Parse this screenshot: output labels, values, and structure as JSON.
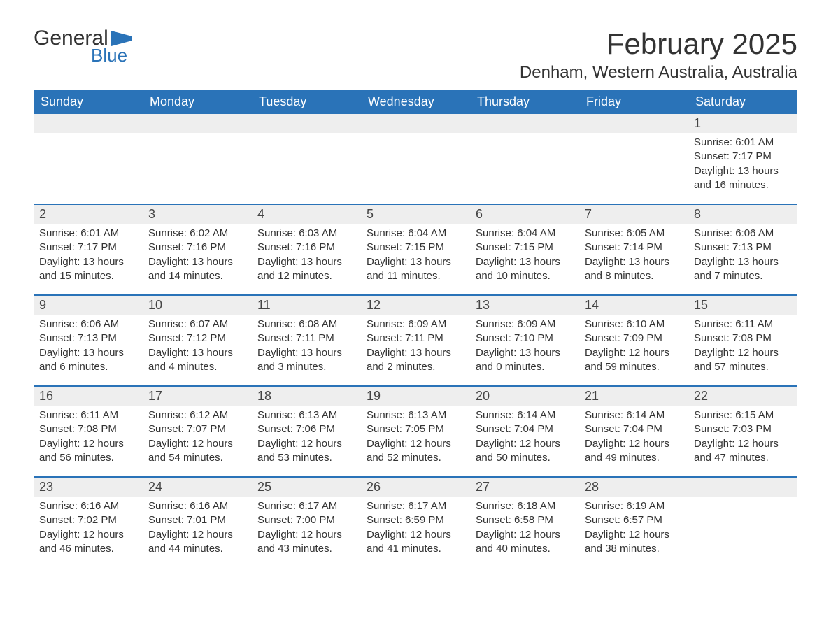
{
  "logo": {
    "general": "General",
    "blue": "Blue"
  },
  "title": "February 2025",
  "location": "Denham, Western Australia, Australia",
  "colors": {
    "header_bg": "#2a73b8",
    "header_text": "#ffffff",
    "daynum_bg": "#eeeeee",
    "text": "#333333",
    "divider": "#2a73b8",
    "background": "#ffffff"
  },
  "weekdays": [
    "Sunday",
    "Monday",
    "Tuesday",
    "Wednesday",
    "Thursday",
    "Friday",
    "Saturday"
  ],
  "weeks": [
    [
      {
        "n": "",
        "sr": "",
        "ss": "",
        "dl": ""
      },
      {
        "n": "",
        "sr": "",
        "ss": "",
        "dl": ""
      },
      {
        "n": "",
        "sr": "",
        "ss": "",
        "dl": ""
      },
      {
        "n": "",
        "sr": "",
        "ss": "",
        "dl": ""
      },
      {
        "n": "",
        "sr": "",
        "ss": "",
        "dl": ""
      },
      {
        "n": "",
        "sr": "",
        "ss": "",
        "dl": ""
      },
      {
        "n": "1",
        "sr": "Sunrise: 6:01 AM",
        "ss": "Sunset: 7:17 PM",
        "dl": "Daylight: 13 hours and 16 minutes."
      }
    ],
    [
      {
        "n": "2",
        "sr": "Sunrise: 6:01 AM",
        "ss": "Sunset: 7:17 PM",
        "dl": "Daylight: 13 hours and 15 minutes."
      },
      {
        "n": "3",
        "sr": "Sunrise: 6:02 AM",
        "ss": "Sunset: 7:16 PM",
        "dl": "Daylight: 13 hours and 14 minutes."
      },
      {
        "n": "4",
        "sr": "Sunrise: 6:03 AM",
        "ss": "Sunset: 7:16 PM",
        "dl": "Daylight: 13 hours and 12 minutes."
      },
      {
        "n": "5",
        "sr": "Sunrise: 6:04 AM",
        "ss": "Sunset: 7:15 PM",
        "dl": "Daylight: 13 hours and 11 minutes."
      },
      {
        "n": "6",
        "sr": "Sunrise: 6:04 AM",
        "ss": "Sunset: 7:15 PM",
        "dl": "Daylight: 13 hours and 10 minutes."
      },
      {
        "n": "7",
        "sr": "Sunrise: 6:05 AM",
        "ss": "Sunset: 7:14 PM",
        "dl": "Daylight: 13 hours and 8 minutes."
      },
      {
        "n": "8",
        "sr": "Sunrise: 6:06 AM",
        "ss": "Sunset: 7:13 PM",
        "dl": "Daylight: 13 hours and 7 minutes."
      }
    ],
    [
      {
        "n": "9",
        "sr": "Sunrise: 6:06 AM",
        "ss": "Sunset: 7:13 PM",
        "dl": "Daylight: 13 hours and 6 minutes."
      },
      {
        "n": "10",
        "sr": "Sunrise: 6:07 AM",
        "ss": "Sunset: 7:12 PM",
        "dl": "Daylight: 13 hours and 4 minutes."
      },
      {
        "n": "11",
        "sr": "Sunrise: 6:08 AM",
        "ss": "Sunset: 7:11 PM",
        "dl": "Daylight: 13 hours and 3 minutes."
      },
      {
        "n": "12",
        "sr": "Sunrise: 6:09 AM",
        "ss": "Sunset: 7:11 PM",
        "dl": "Daylight: 13 hours and 2 minutes."
      },
      {
        "n": "13",
        "sr": "Sunrise: 6:09 AM",
        "ss": "Sunset: 7:10 PM",
        "dl": "Daylight: 13 hours and 0 minutes."
      },
      {
        "n": "14",
        "sr": "Sunrise: 6:10 AM",
        "ss": "Sunset: 7:09 PM",
        "dl": "Daylight: 12 hours and 59 minutes."
      },
      {
        "n": "15",
        "sr": "Sunrise: 6:11 AM",
        "ss": "Sunset: 7:08 PM",
        "dl": "Daylight: 12 hours and 57 minutes."
      }
    ],
    [
      {
        "n": "16",
        "sr": "Sunrise: 6:11 AM",
        "ss": "Sunset: 7:08 PM",
        "dl": "Daylight: 12 hours and 56 minutes."
      },
      {
        "n": "17",
        "sr": "Sunrise: 6:12 AM",
        "ss": "Sunset: 7:07 PM",
        "dl": "Daylight: 12 hours and 54 minutes."
      },
      {
        "n": "18",
        "sr": "Sunrise: 6:13 AM",
        "ss": "Sunset: 7:06 PM",
        "dl": "Daylight: 12 hours and 53 minutes."
      },
      {
        "n": "19",
        "sr": "Sunrise: 6:13 AM",
        "ss": "Sunset: 7:05 PM",
        "dl": "Daylight: 12 hours and 52 minutes."
      },
      {
        "n": "20",
        "sr": "Sunrise: 6:14 AM",
        "ss": "Sunset: 7:04 PM",
        "dl": "Daylight: 12 hours and 50 minutes."
      },
      {
        "n": "21",
        "sr": "Sunrise: 6:14 AM",
        "ss": "Sunset: 7:04 PM",
        "dl": "Daylight: 12 hours and 49 minutes."
      },
      {
        "n": "22",
        "sr": "Sunrise: 6:15 AM",
        "ss": "Sunset: 7:03 PM",
        "dl": "Daylight: 12 hours and 47 minutes."
      }
    ],
    [
      {
        "n": "23",
        "sr": "Sunrise: 6:16 AM",
        "ss": "Sunset: 7:02 PM",
        "dl": "Daylight: 12 hours and 46 minutes."
      },
      {
        "n": "24",
        "sr": "Sunrise: 6:16 AM",
        "ss": "Sunset: 7:01 PM",
        "dl": "Daylight: 12 hours and 44 minutes."
      },
      {
        "n": "25",
        "sr": "Sunrise: 6:17 AM",
        "ss": "Sunset: 7:00 PM",
        "dl": "Daylight: 12 hours and 43 minutes."
      },
      {
        "n": "26",
        "sr": "Sunrise: 6:17 AM",
        "ss": "Sunset: 6:59 PM",
        "dl": "Daylight: 12 hours and 41 minutes."
      },
      {
        "n": "27",
        "sr": "Sunrise: 6:18 AM",
        "ss": "Sunset: 6:58 PM",
        "dl": "Daylight: 12 hours and 40 minutes."
      },
      {
        "n": "28",
        "sr": "Sunrise: 6:19 AM",
        "ss": "Sunset: 6:57 PM",
        "dl": "Daylight: 12 hours and 38 minutes."
      },
      {
        "n": "",
        "sr": "",
        "ss": "",
        "dl": ""
      }
    ]
  ]
}
